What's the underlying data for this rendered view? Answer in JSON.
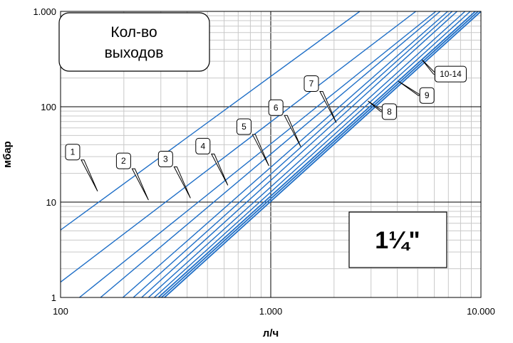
{
  "chart_data": {
    "type": "line",
    "x_scale": "log",
    "y_scale": "log",
    "xlim": [
      100,
      10000
    ],
    "ylim": [
      1,
      1000
    ],
    "xlabel": "л/ч",
    "ylabel": "мбар",
    "x_ticks": [
      {
        "value": 100,
        "label": "100"
      },
      {
        "value": 1000,
        "label": "1.000"
      },
      {
        "value": 10000,
        "label": "10.000"
      }
    ],
    "y_ticks": [
      {
        "value": 1,
        "label": "1"
      },
      {
        "value": 10,
        "label": "10"
      },
      {
        "value": 100,
        "label": "100"
      },
      {
        "value": 1000,
        "label": "1.000"
      }
    ],
    "grid": true,
    "series_color": "#1f6fc7",
    "legend_box_title": "Кол-во выходов",
    "legend_box_line1": "Кол-во",
    "legend_box_line2": "выходов",
    "size_label": "1¼\"",
    "series": [
      {
        "points": [
          [
            100,
            5.1
          ],
          [
            2650,
            1000
          ]
        ]
      },
      {
        "points": [
          [
            100,
            1.45
          ],
          [
            4900,
            1000
          ]
        ]
      },
      {
        "points": [
          [
            123,
            1
          ],
          [
            6100,
            1000
          ]
        ]
      },
      {
        "points": [
          [
            155,
            1
          ],
          [
            6400,
            1000
          ]
        ]
      },
      {
        "points": [
          [
            198,
            1
          ],
          [
            6950,
            1000
          ]
        ]
      },
      {
        "points": [
          [
            222,
            1
          ],
          [
            7300,
            1000
          ]
        ]
      },
      {
        "points": [
          [
            243,
            1
          ],
          [
            7700,
            1000
          ]
        ]
      },
      {
        "points": [
          [
            262,
            1
          ],
          [
            8400,
            1000
          ]
        ]
      },
      {
        "points": [
          [
            279,
            1
          ],
          [
            8900,
            1000
          ]
        ]
      },
      {
        "points": [
          [
            292,
            1
          ],
          [
            9400,
            1000
          ]
        ]
      },
      {
        "points": [
          [
            302,
            1
          ],
          [
            9700,
            1000
          ]
        ]
      },
      {
        "points": [
          [
            312,
            1
          ],
          [
            10000,
            1000
          ]
        ]
      }
    ],
    "callouts": [
      {
        "label": "1",
        "target": [
          150,
          13
        ]
      },
      {
        "label": "2",
        "target": [
          262,
          10.5
        ]
      },
      {
        "label": "3",
        "target": [
          415,
          11
        ]
      },
      {
        "label": "4",
        "target": [
          625,
          15
        ]
      },
      {
        "label": "5",
        "target": [
          980,
          24
        ]
      },
      {
        "label": "6",
        "target": [
          1390,
          38
        ]
      },
      {
        "label": "7",
        "target": [
          2050,
          68
        ]
      },
      {
        "label": "8",
        "target": [
          2900,
          115
        ]
      },
      {
        "label": "9",
        "target": [
          4050,
          185
        ]
      },
      {
        "label": "10-14",
        "target": [
          5250,
          310
        ]
      }
    ]
  }
}
